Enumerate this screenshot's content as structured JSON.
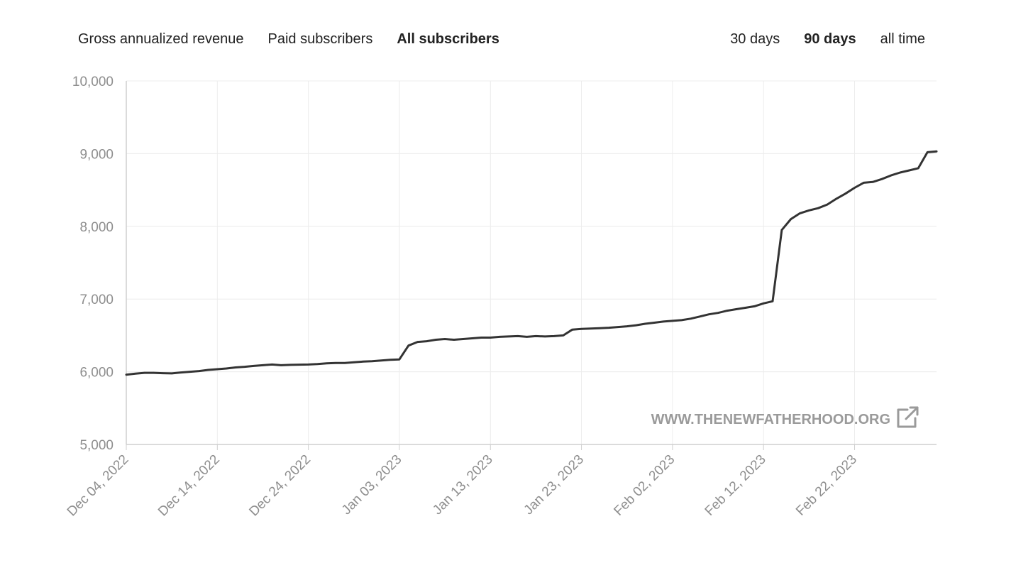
{
  "metric_tabs": [
    {
      "label": "Gross annualized revenue",
      "active": false
    },
    {
      "label": "Paid subscribers",
      "active": false
    },
    {
      "label": "All subscribers",
      "active": true
    }
  ],
  "range_tabs": [
    {
      "label": "30 days",
      "active": false
    },
    {
      "label": "90 days",
      "active": true
    },
    {
      "label": "all time",
      "active": false
    }
  ],
  "watermark": {
    "text": "WWW.THENEWFATHERHOOD.ORG",
    "icon": "external-link-icon"
  },
  "colors": {
    "line": "#333333",
    "grid": "#ececec",
    "axis": "#cfcfcf",
    "tick_text": "#8e8e8e"
  },
  "chart_data": {
    "type": "line",
    "title": "",
    "xlabel": "",
    "ylabel": "",
    "ylim": [
      5000,
      10000
    ],
    "y_ticks": [
      "5,000",
      "6,000",
      "7,000",
      "8,000",
      "9,000",
      "10,000"
    ],
    "x_range": [
      "2022-12-04",
      "2023-03-03"
    ],
    "x_ticks": [
      "Dec 04, 2022",
      "Dec 14, 2022",
      "Dec 24, 2022",
      "Jan 03, 2023",
      "Jan 13, 2023",
      "Jan 23, 2023",
      "Feb 02, 2023",
      "Feb 12, 2023",
      "Feb 22, 2023"
    ],
    "grid": true,
    "series": [
      {
        "x": [
          "2022-12-04",
          "2022-12-05",
          "2022-12-06",
          "2022-12-07",
          "2022-12-08",
          "2022-12-09",
          "2022-12-10",
          "2022-12-11",
          "2022-12-12",
          "2022-12-13",
          "2022-12-14",
          "2022-12-15",
          "2022-12-16",
          "2022-12-17",
          "2022-12-18",
          "2022-12-19",
          "2022-12-20",
          "2022-12-21",
          "2022-12-22",
          "2022-12-23",
          "2022-12-24",
          "2022-12-25",
          "2022-12-26",
          "2022-12-27",
          "2022-12-28",
          "2022-12-29",
          "2022-12-30",
          "2022-12-31",
          "2023-01-01",
          "2023-01-02",
          "2023-01-03",
          "2023-01-04",
          "2023-01-05",
          "2023-01-06",
          "2023-01-07",
          "2023-01-08",
          "2023-01-09",
          "2023-01-10",
          "2023-01-11",
          "2023-01-12",
          "2023-01-13",
          "2023-01-14",
          "2023-01-15",
          "2023-01-16",
          "2023-01-17",
          "2023-01-18",
          "2023-01-19",
          "2023-01-20",
          "2023-01-21",
          "2023-01-22",
          "2023-01-23",
          "2023-01-24",
          "2023-01-25",
          "2023-01-26",
          "2023-01-27",
          "2023-01-28",
          "2023-01-29",
          "2023-01-30",
          "2023-01-31",
          "2023-02-01",
          "2023-02-02",
          "2023-02-03",
          "2023-02-04",
          "2023-02-05",
          "2023-02-06",
          "2023-02-07",
          "2023-02-08",
          "2023-02-09",
          "2023-02-10",
          "2023-02-11",
          "2023-02-12",
          "2023-02-13",
          "2023-02-14",
          "2023-02-15",
          "2023-02-16",
          "2023-02-17",
          "2023-02-18",
          "2023-02-19",
          "2023-02-20",
          "2023-02-21",
          "2023-02-22",
          "2023-02-23",
          "2023-02-24",
          "2023-02-25",
          "2023-02-26",
          "2023-02-27",
          "2023-02-28",
          "2023-03-01",
          "2023-03-02",
          "2023-03-03"
        ],
        "y": [
          5960,
          5975,
          5985,
          5985,
          5980,
          5978,
          5990,
          6000,
          6010,
          6025,
          6035,
          6045,
          6060,
          6068,
          6080,
          6090,
          6100,
          6090,
          6095,
          6098,
          6100,
          6105,
          6115,
          6120,
          6120,
          6130,
          6140,
          6145,
          6155,
          6165,
          6170,
          6360,
          6410,
          6420,
          6440,
          6450,
          6440,
          6450,
          6460,
          6470,
          6470,
          6480,
          6485,
          6490,
          6480,
          6490,
          6485,
          6490,
          6500,
          6580,
          6590,
          6595,
          6600,
          6605,
          6615,
          6625,
          6640,
          6660,
          6675,
          6690,
          6700,
          6710,
          6730,
          6760,
          6790,
          6810,
          6840,
          6860,
          6880,
          6900,
          6940,
          6970,
          7950,
          8100,
          8180,
          8220,
          8250,
          8300,
          8380,
          8450,
          8530,
          8600,
          8610,
          8650,
          8700,
          8740,
          8770,
          8800,
          9020,
          9030
        ]
      }
    ]
  }
}
